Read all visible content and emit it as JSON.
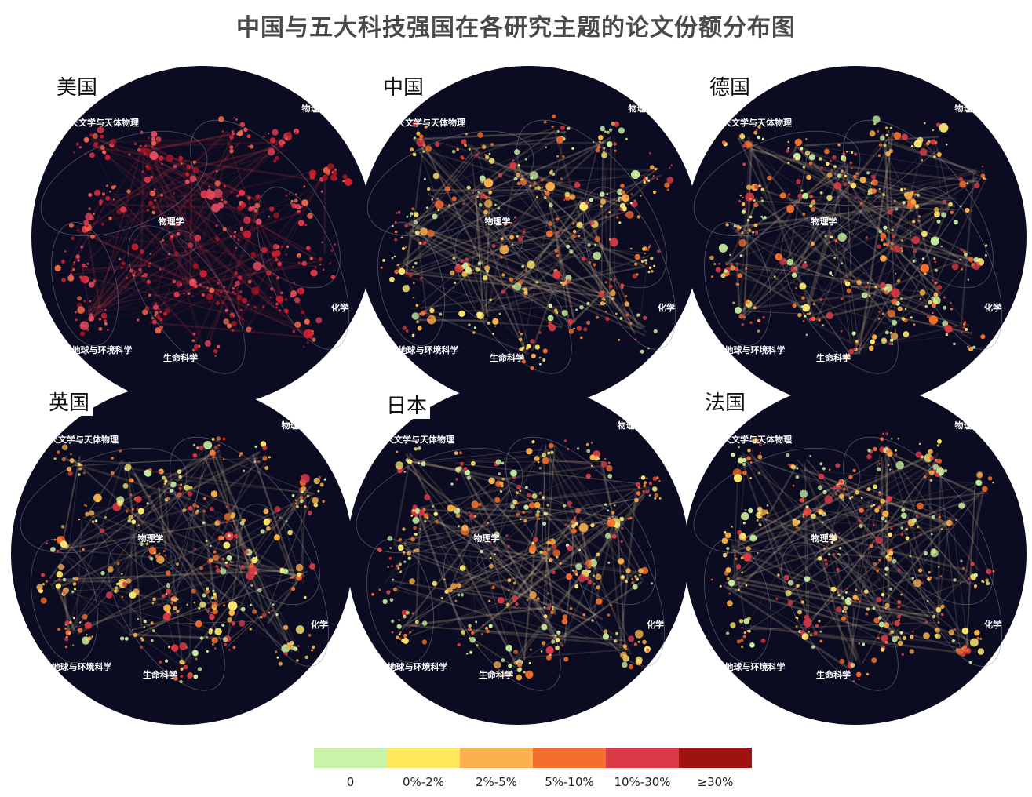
{
  "title": "中国与五大科技强国在各研究主题的论文份额分布图",
  "countries": [
    {
      "name": "美国",
      "tint": [
        "#f26a4a",
        "#e0394a",
        "#d02030",
        "#a81420",
        "#e84a5f"
      ]
    },
    {
      "name": "中国",
      "tint": [
        "#ffea70",
        "#fdb24a",
        "#f46e2d",
        "#d93a45",
        "#c8f0a0"
      ]
    },
    {
      "name": "德国",
      "tint": [
        "#ffea70",
        "#fdb24a",
        "#f46e2d",
        "#d93a45",
        "#c8f0a0"
      ]
    },
    {
      "name": "英国",
      "tint": [
        "#ffea70",
        "#fdb24a",
        "#f46e2d",
        "#d93a45",
        "#c8f0a0"
      ]
    },
    {
      "name": "日本",
      "tint": [
        "#ffea70",
        "#fdb24a",
        "#f46e2d",
        "#d93a45",
        "#c8f0a0"
      ]
    },
    {
      "name": "法国",
      "tint": [
        "#ffea70",
        "#fdb24a",
        "#f46e2d",
        "#d93a45",
        "#c8f0a0"
      ]
    }
  ],
  "region_labels": [
    "天文学与天体物理",
    "物理学",
    "物理学",
    "化学",
    "生命科学",
    "地球与环境科学"
  ],
  "legend": {
    "items": [
      {
        "label": "0",
        "color": "#c9f4a8"
      },
      {
        "label": "0%-2%",
        "color": "#ffe85c"
      },
      {
        "label": "2%-5%",
        "color": "#fdb04e"
      },
      {
        "label": "5%-10%",
        "color": "#f46e2e"
      },
      {
        "label": "10%-30%",
        "color": "#d93a46"
      },
      {
        "label": "≥30%",
        "color": "#a01210"
      }
    ]
  },
  "colors": {
    "map_background": "#0b0c22",
    "line_us": "#c0323c",
    "line_other": "#e8c89a"
  }
}
